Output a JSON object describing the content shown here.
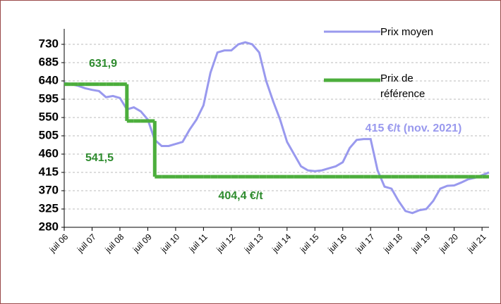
{
  "chart_data": {
    "type": "line",
    "categories": [
      "juil 06",
      null,
      null,
      null,
      "juil 07",
      null,
      null,
      null,
      "juil 08",
      null,
      null,
      null,
      "juil 09",
      null,
      null,
      null,
      "juil 10",
      null,
      null,
      null,
      "juil 11",
      null,
      null,
      null,
      "juil 12",
      null,
      null,
      null,
      "juil 13",
      null,
      null,
      null,
      "juil 14",
      null,
      null,
      null,
      "juil 15",
      null,
      null,
      null,
      "juil 16",
      null,
      null,
      null,
      "juil 17",
      null,
      null,
      null,
      "juil 18",
      null,
      null,
      null,
      "juil 19",
      null,
      null,
      null,
      "juil 20",
      null,
      null,
      null,
      "juil 21",
      null
    ],
    "series": [
      {
        "name": "Prix moyen",
        "color": "#9999ee",
        "style": "line",
        "values": [
          635,
          632,
          628,
          622,
          618,
          615,
          600,
          603,
          598,
          570,
          575,
          565,
          545,
          495,
          480,
          480,
          485,
          490,
          520,
          545,
          580,
          660,
          710,
          715,
          715,
          730,
          735,
          730,
          710,
          640,
          590,
          545,
          490,
          460,
          430,
          420,
          418,
          420,
          425,
          430,
          440,
          475,
          495,
          497,
          497,
          420,
          380,
          375,
          345,
          320,
          315,
          322,
          325,
          345,
          375,
          382,
          383,
          390,
          398,
          402,
          408,
          415
        ]
      },
      {
        "name": "Prix de référence",
        "color": "#4cae3c",
        "style": "step",
        "values": [
          631.9,
          631.9,
          631.9,
          631.9,
          631.9,
          631.9,
          631.9,
          631.9,
          631.9,
          541.5,
          541.5,
          541.5,
          541.5,
          404.4,
          404.4,
          404.4,
          404.4,
          404.4,
          404.4,
          404.4,
          404.4,
          404.4,
          404.4,
          404.4,
          404.4,
          404.4,
          404.4,
          404.4,
          404.4,
          404.4,
          404.4,
          404.4,
          404.4,
          404.4,
          404.4,
          404.4,
          404.4,
          404.4,
          404.4,
          404.4,
          404.4,
          404.4,
          404.4,
          404.4,
          404.4,
          404.4,
          404.4,
          404.4,
          404.4,
          404.4,
          404.4,
          404.4,
          404.4,
          404.4,
          404.4,
          404.4,
          404.4,
          404.4,
          404.4,
          404.4,
          404.4,
          404.4
        ]
      }
    ],
    "ylim": [
      280,
      730
    ],
    "yticks": [
      280,
      325,
      370,
      415,
      460,
      505,
      550,
      595,
      640,
      685,
      730
    ],
    "grid": true,
    "annotations": [
      {
        "text": "631,9",
        "color": "#2e8b2e"
      },
      {
        "text": "541,5",
        "color": "#2e8b2e"
      },
      {
        "text": "404,4 €/t",
        "color": "#2e8b2e"
      },
      {
        "text": "415 €/t (nov. 2021)",
        "color": "#9999ee"
      }
    ]
  }
}
